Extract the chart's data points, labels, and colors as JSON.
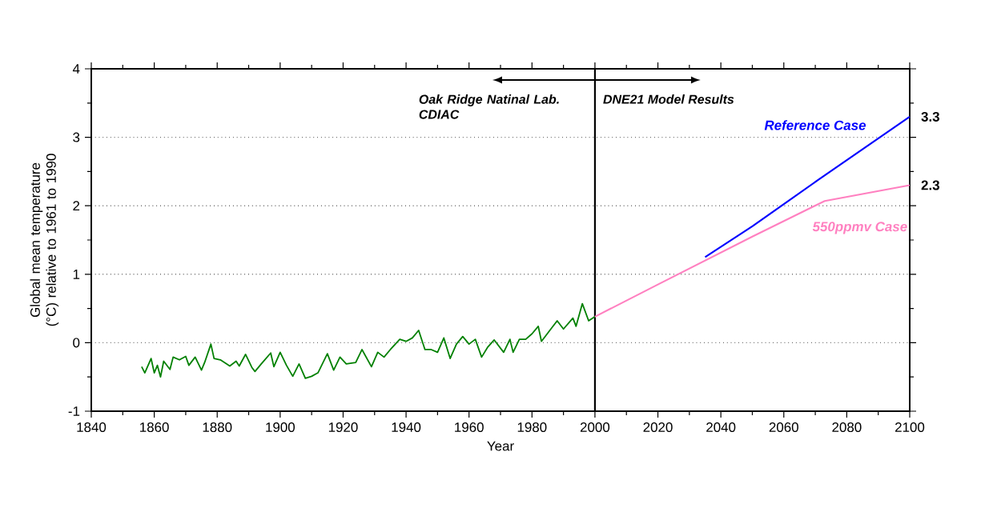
{
  "chart_data": {
    "type": "line",
    "xlabel": "Year",
    "ylabel": "Global mean temperature (°C) relative to 1961 to 1990",
    "xlim": [
      1840,
      2100
    ],
    "ylim": [
      -1,
      4
    ],
    "xticks": [
      1840,
      1860,
      1880,
      1900,
      1920,
      1940,
      1960,
      1980,
      2000,
      2020,
      2040,
      2060,
      2080,
      2100
    ],
    "yticks": [
      -1,
      0,
      1,
      2,
      3,
      4
    ],
    "grid": "y",
    "marker": "none",
    "line_style": "solid",
    "ref_lines": [
      {
        "axis": "x",
        "value": 2000,
        "color": "#000000"
      }
    ],
    "annotations": [
      "Oak Ridge Natinal Lab. CDIAC",
      "DNE21 Model Results"
    ],
    "series": [
      {
        "color": "#008000",
        "x": [
          1856,
          1857,
          1859,
          1860,
          1861,
          1862,
          1863,
          1865,
          1866,
          1868,
          1870,
          1871,
          1873,
          1875,
          1876,
          1878,
          1879,
          1881,
          1884,
          1886,
          1887,
          1889,
          1891,
          1892,
          1894,
          1897,
          1898,
          1900,
          1902,
          1904,
          1906,
          1908,
          1910,
          1912,
          1915,
          1917,
          1919,
          1921,
          1924,
          1926,
          1929,
          1931,
          1933,
          1935,
          1938,
          1940,
          1942,
          1944,
          1946,
          1948,
          1950,
          1952,
          1954,
          1956,
          1958,
          1960,
          1962,
          1964,
          1966,
          1968,
          1971,
          1973,
          1974,
          1976,
          1978,
          1980,
          1982,
          1983,
          1986,
          1988,
          1990,
          1993,
          1994,
          1996,
          1998,
          2000
        ],
        "values": [
          -0.35,
          -0.44,
          -0.23,
          -0.44,
          -0.33,
          -0.5,
          -0.27,
          -0.39,
          -0.21,
          -0.25,
          -0.2,
          -0.33,
          -0.21,
          -0.4,
          -0.29,
          -0.02,
          -0.23,
          -0.25,
          -0.34,
          -0.27,
          -0.34,
          -0.17,
          -0.36,
          -0.42,
          -0.31,
          -0.15,
          -0.35,
          -0.14,
          -0.33,
          -0.49,
          -0.31,
          -0.52,
          -0.49,
          -0.44,
          -0.16,
          -0.4,
          -0.21,
          -0.31,
          -0.29,
          -0.1,
          -0.35,
          -0.14,
          -0.21,
          -0.1,
          0.05,
          0.02,
          0.07,
          0.18,
          -0.1,
          -0.1,
          -0.14,
          0.07,
          -0.23,
          -0.02,
          0.09,
          -0.02,
          0.05,
          -0.21,
          -0.06,
          0.04,
          -0.14,
          0.05,
          -0.14,
          0.05,
          0.05,
          0.13,
          0.24,
          0.02,
          0.2,
          0.32,
          0.2,
          0.36,
          0.24,
          0.57,
          0.32,
          0.38
        ]
      },
      {
        "name": "550ppmv Case",
        "color": "#ff80c0",
        "x": [
          2000,
          2020,
          2035,
          2050,
          2073,
          2100
        ],
        "values": [
          0.38,
          0.85,
          1.2,
          1.55,
          2.07,
          2.3
        ],
        "value_labels": [
          null,
          null,
          null,
          null,
          null,
          "2.3"
        ]
      },
      {
        "name": "Reference Case",
        "color": "#0000ff",
        "x": [
          2035,
          2050,
          2071,
          2100
        ],
        "values": [
          1.25,
          1.7,
          2.38,
          3.3
        ],
        "value_labels": [
          null,
          null,
          null,
          "3.3"
        ]
      }
    ]
  }
}
